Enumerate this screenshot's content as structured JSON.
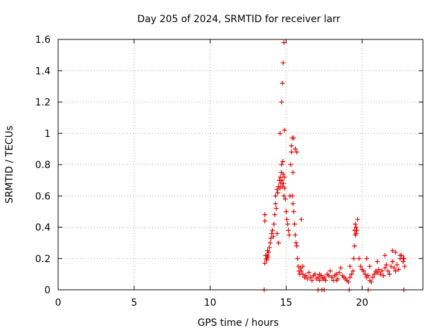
{
  "chart_data": {
    "type": "scatter",
    "title": "Day 205 of 2024, SRMTID for receiver larr",
    "xlabel": "GPS time / hours",
    "ylabel": "SRMTID / TECUs",
    "xlim": [
      0,
      24
    ],
    "ylim": [
      0,
      1.6
    ],
    "xticks": [
      0,
      5,
      10,
      15,
      20
    ],
    "xtick_labels": [
      "0",
      "5",
      "10",
      "15",
      "20"
    ],
    "yticks": [
      0,
      0.2,
      0.4,
      0.6,
      0.8,
      1.0,
      1.2,
      1.4,
      1.6
    ],
    "ytick_labels": [
      "0",
      "0.2",
      "0.4",
      "0.6",
      "0.8",
      "1",
      "1.2",
      "1.4",
      "1.6"
    ],
    "grid": true,
    "marker": "+",
    "color": "#e00000",
    "series": [
      {
        "name": "SRMTID",
        "x": [
          13.6,
          13.65,
          13.7,
          13.72,
          13.75,
          13.78,
          13.8,
          13.85,
          13.9,
          13.95,
          14.0,
          14.05,
          14.1,
          14.15,
          14.2,
          14.25,
          14.3,
          14.3,
          14.35,
          14.4,
          14.45,
          14.5,
          14.55,
          14.6,
          14.62,
          14.65,
          14.68,
          14.7,
          14.72,
          14.75,
          14.78,
          14.8,
          14.82,
          14.85,
          14.88,
          14.9,
          14.95,
          15.0,
          15.05,
          15.1,
          15.15,
          15.2,
          15.25,
          15.3,
          15.35,
          15.4,
          15.45,
          15.5,
          15.55,
          15.6,
          15.65,
          15.7,
          15.75,
          15.8,
          15.85,
          15.9,
          15.95,
          16.0,
          16.1,
          16.2,
          16.3,
          16.4,
          16.5,
          16.6,
          16.7,
          16.8,
          16.9,
          17.0,
          17.1,
          17.2,
          17.3,
          17.4,
          17.5,
          17.6,
          17.7,
          17.8,
          17.9,
          18.0,
          18.1,
          18.2,
          18.3,
          18.4,
          18.5,
          18.6,
          18.7,
          18.8,
          18.9,
          19.0,
          19.1,
          19.2,
          19.3,
          19.4,
          19.45,
          19.5,
          19.55,
          19.6,
          19.65,
          19.7,
          19.8,
          19.9,
          20.0,
          20.1,
          20.2,
          20.3,
          20.4,
          20.5,
          20.6,
          20.7,
          20.8,
          20.9,
          21.0,
          21.1,
          21.2,
          21.3,
          21.4,
          21.5,
          21.6,
          21.7,
          21.8,
          21.9,
          22.0,
          22.1,
          22.2,
          22.3,
          22.4,
          22.5,
          22.6,
          22.7,
          22.75,
          22.8,
          13.6,
          13.6,
          14.4,
          14.5,
          14.6,
          14.7,
          14.75,
          14.8,
          14.85,
          14.9,
          15.35,
          15.4,
          15.45,
          15.5,
          15.6,
          15.7,
          16.0,
          16.1,
          17.2,
          17.5,
          18.3,
          19.2,
          19.5,
          19.55,
          19.6,
          20.3,
          20.5,
          21.0,
          21.5,
          22.0,
          22.2,
          22.5,
          22.7,
          13.55,
          17.1,
          17.35,
          17.5,
          19.15,
          20.4,
          22.75
        ],
        "y": [
          0.17,
          0.22,
          0.2,
          0.19,
          0.22,
          0.25,
          0.21,
          0.24,
          0.27,
          0.3,
          0.33,
          0.36,
          0.38,
          0.34,
          0.42,
          0.48,
          0.55,
          0.6,
          0.52,
          0.64,
          0.62,
          0.66,
          0.7,
          0.65,
          0.72,
          0.68,
          0.75,
          0.8,
          0.7,
          0.66,
          0.82,
          0.74,
          0.68,
          0.6,
          0.72,
          0.65,
          0.58,
          0.5,
          0.45,
          0.42,
          0.38,
          0.35,
          0.6,
          0.8,
          0.92,
          0.97,
          0.75,
          0.5,
          0.42,
          0.35,
          0.3,
          0.28,
          0.2,
          0.15,
          0.12,
          0.1,
          0.14,
          0.12,
          0.1,
          0.08,
          0.09,
          0.07,
          0.11,
          0.08,
          0.06,
          0.09,
          0.1,
          0.07,
          0.08,
          0.06,
          0.09,
          0.07,
          0.08,
          0.06,
          0.1,
          0.09,
          0.12,
          0.08,
          0.06,
          0.09,
          0.1,
          0.07,
          0.11,
          0.14,
          0.09,
          0.08,
          0.07,
          0.06,
          0.05,
          0.08,
          0.1,
          0.12,
          0.2,
          0.28,
          0.35,
          0.4,
          0.38,
          0.45,
          0.2,
          0.15,
          0.13,
          0.12,
          0.1,
          0.08,
          0.09,
          0.06,
          0.05,
          0.08,
          0.1,
          0.12,
          0.11,
          0.13,
          0.1,
          0.12,
          0.09,
          0.14,
          0.16,
          0.12,
          0.1,
          0.15,
          0.18,
          0.14,
          0.12,
          0.16,
          0.13,
          0.2,
          0.22,
          0.18,
          0.2,
          0.15,
          0.48,
          0.44,
          0.36,
          0.3,
          1.0,
          1.2,
          1.32,
          1.45,
          1.58,
          1.02,
          0.88,
          0.6,
          0.55,
          0.97,
          0.9,
          0.88,
          0.45,
          0.15,
          0.1,
          0.07,
          0.06,
          0.15,
          0.38,
          0.42,
          0.36,
          0.2,
          0.15,
          0.18,
          0.22,
          0.25,
          0.24,
          0.22,
          0.2,
          0.0,
          0.0,
          0.0,
          0.0,
          0.0,
          0.0,
          0.0
        ]
      }
    ]
  }
}
